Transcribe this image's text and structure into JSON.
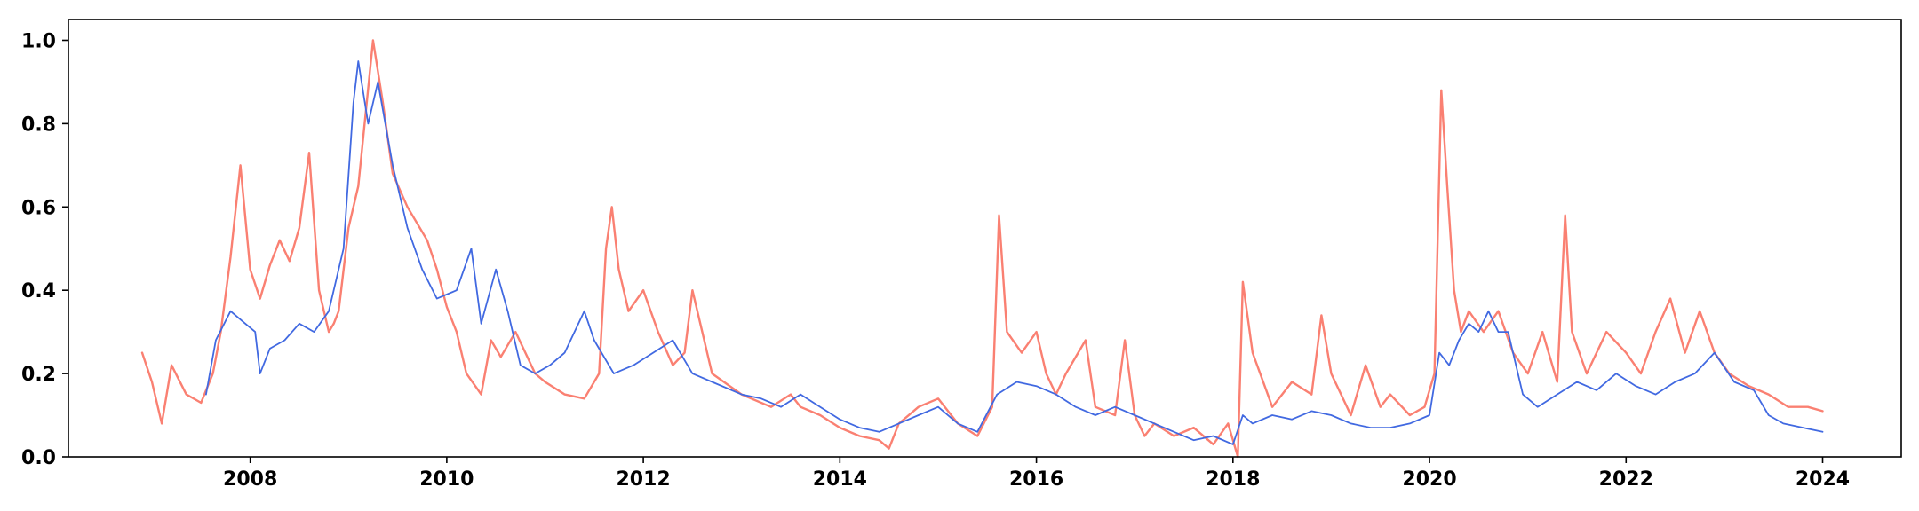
{
  "chart_data": {
    "type": "line",
    "title": "",
    "xlabel": "",
    "ylabel": "",
    "xlim": [
      2006.15,
      2024.8
    ],
    "ylim": [
      0.0,
      1.05
    ],
    "x_ticks": [
      2008,
      2010,
      2012,
      2014,
      2016,
      2018,
      2020,
      2022,
      2024
    ],
    "x_tick_labels": [
      "2008",
      "2010",
      "2012",
      "2014",
      "2016",
      "2018",
      "2020",
      "2022",
      "2024"
    ],
    "y_ticks": [
      0.0,
      0.2,
      0.4,
      0.6,
      0.8,
      1.0
    ],
    "y_tick_labels": [
      "0.0",
      "0.2",
      "0.4",
      "0.6",
      "0.8",
      "1.0"
    ],
    "grid": false,
    "legend": "none",
    "series": [
      {
        "color": "#FA8072",
        "x": [
          2006.9,
          2007.0,
          2007.1,
          2007.2,
          2007.35,
          2007.5,
          2007.62,
          2007.7,
          2007.8,
          2007.9,
          2008.0,
          2008.1,
          2008.2,
          2008.3,
          2008.4,
          2008.5,
          2008.6,
          2008.7,
          2008.8,
          2008.85,
          2008.9,
          2009.0,
          2009.1,
          2009.25,
          2009.35,
          2009.45,
          2009.6,
          2009.8,
          2009.9,
          2010.0,
          2010.1,
          2010.2,
          2010.35,
          2010.45,
          2010.55,
          2010.7,
          2010.9,
          2011.0,
          2011.2,
          2011.4,
          2011.55,
          2011.62,
          2011.68,
          2011.75,
          2011.85,
          2012.0,
          2012.15,
          2012.3,
          2012.42,
          2012.5,
          2012.7,
          2013.0,
          2013.3,
          2013.5,
          2013.6,
          2013.8,
          2014.0,
          2014.2,
          2014.4,
          2014.5,
          2014.6,
          2014.8,
          2015.0,
          2015.2,
          2015.4,
          2015.55,
          2015.62,
          2015.7,
          2015.85,
          2016.0,
          2016.1,
          2016.2,
          2016.3,
          2016.5,
          2016.6,
          2016.8,
          2016.9,
          2017.0,
          2017.1,
          2017.2,
          2017.4,
          2017.6,
          2017.8,
          2017.95,
          2018.05,
          2018.1,
          2018.2,
          2018.4,
          2018.6,
          2018.8,
          2018.9,
          2019.0,
          2019.1,
          2019.2,
          2019.35,
          2019.5,
          2019.6,
          2019.8,
          2019.95,
          2020.05,
          2020.12,
          2020.18,
          2020.25,
          2020.32,
          2020.4,
          2020.55,
          2020.7,
          2020.85,
          2021.0,
          2021.15,
          2021.3,
          2021.38,
          2021.45,
          2021.6,
          2021.8,
          2022.0,
          2022.15,
          2022.3,
          2022.45,
          2022.6,
          2022.75,
          2022.9,
          2023.05,
          2023.25,
          2023.45,
          2023.65,
          2023.85,
          2024.0
        ],
        "values": [
          0.25,
          0.18,
          0.08,
          0.22,
          0.15,
          0.13,
          0.2,
          0.3,
          0.48,
          0.7,
          0.45,
          0.38,
          0.46,
          0.52,
          0.47,
          0.55,
          0.73,
          0.4,
          0.3,
          0.32,
          0.35,
          0.55,
          0.65,
          1.0,
          0.85,
          0.68,
          0.6,
          0.52,
          0.45,
          0.36,
          0.3,
          0.2,
          0.15,
          0.28,
          0.24,
          0.3,
          0.2,
          0.18,
          0.15,
          0.14,
          0.2,
          0.5,
          0.6,
          0.45,
          0.35,
          0.4,
          0.3,
          0.22,
          0.25,
          0.4,
          0.2,
          0.15,
          0.12,
          0.15,
          0.12,
          0.1,
          0.07,
          0.05,
          0.04,
          0.02,
          0.08,
          0.12,
          0.14,
          0.08,
          0.05,
          0.12,
          0.58,
          0.3,
          0.25,
          0.3,
          0.2,
          0.15,
          0.2,
          0.28,
          0.12,
          0.1,
          0.28,
          0.1,
          0.05,
          0.08,
          0.05,
          0.07,
          0.03,
          0.08,
          0.0,
          0.42,
          0.25,
          0.12,
          0.18,
          0.15,
          0.34,
          0.2,
          0.15,
          0.1,
          0.22,
          0.12,
          0.15,
          0.1,
          0.12,
          0.2,
          0.88,
          0.65,
          0.4,
          0.3,
          0.35,
          0.3,
          0.35,
          0.25,
          0.2,
          0.3,
          0.18,
          0.58,
          0.3,
          0.2,
          0.3,
          0.25,
          0.2,
          0.3,
          0.38,
          0.25,
          0.35,
          0.25,
          0.2,
          0.17,
          0.15,
          0.12,
          0.12,
          0.11
        ]
      },
      {
        "color": "#4169E1",
        "x": [
          2007.55,
          2007.65,
          2007.8,
          2007.95,
          2008.05,
          2008.1,
          2008.2,
          2008.35,
          2008.5,
          2008.65,
          2008.8,
          2008.95,
          2009.05,
          2009.1,
          2009.2,
          2009.3,
          2009.45,
          2009.6,
          2009.75,
          2009.9,
          2010.1,
          2010.25,
          2010.35,
          2010.5,
          2010.62,
          2010.75,
          2010.9,
          2011.05,
          2011.2,
          2011.4,
          2011.5,
          2011.7,
          2011.9,
          2012.1,
          2012.3,
          2012.5,
          2012.7,
          2013.0,
          2013.2,
          2013.4,
          2013.6,
          2013.8,
          2014.0,
          2014.2,
          2014.4,
          2014.6,
          2014.8,
          2015.0,
          2015.2,
          2015.4,
          2015.6,
          2015.8,
          2016.0,
          2016.2,
          2016.4,
          2016.6,
          2016.8,
          2017.0,
          2017.2,
          2017.4,
          2017.6,
          2017.8,
          2018.0,
          2018.1,
          2018.2,
          2018.4,
          2018.6,
          2018.8,
          2019.0,
          2019.2,
          2019.4,
          2019.6,
          2019.8,
          2020.0,
          2020.1,
          2020.2,
          2020.3,
          2020.4,
          2020.5,
          2020.6,
          2020.7,
          2020.8,
          2020.95,
          2021.1,
          2021.3,
          2021.5,
          2021.7,
          2021.9,
          2022.1,
          2022.3,
          2022.5,
          2022.7,
          2022.9,
          2023.1,
          2023.3,
          2023.45,
          2023.6,
          2023.8,
          2024.0
        ],
        "values": [
          0.15,
          0.28,
          0.35,
          0.32,
          0.3,
          0.2,
          0.26,
          0.28,
          0.32,
          0.3,
          0.35,
          0.5,
          0.85,
          0.95,
          0.8,
          0.9,
          0.7,
          0.55,
          0.45,
          0.38,
          0.4,
          0.5,
          0.32,
          0.45,
          0.35,
          0.22,
          0.2,
          0.22,
          0.25,
          0.35,
          0.28,
          0.2,
          0.22,
          0.25,
          0.28,
          0.2,
          0.18,
          0.15,
          0.14,
          0.12,
          0.15,
          0.12,
          0.09,
          0.07,
          0.06,
          0.08,
          0.1,
          0.12,
          0.08,
          0.06,
          0.15,
          0.18,
          0.17,
          0.15,
          0.12,
          0.1,
          0.12,
          0.1,
          0.08,
          0.06,
          0.04,
          0.05,
          0.03,
          0.1,
          0.08,
          0.1,
          0.09,
          0.11,
          0.1,
          0.08,
          0.07,
          0.07,
          0.08,
          0.1,
          0.25,
          0.22,
          0.28,
          0.32,
          0.3,
          0.35,
          0.3,
          0.3,
          0.15,
          0.12,
          0.15,
          0.18,
          0.16,
          0.2,
          0.17,
          0.15,
          0.18,
          0.2,
          0.25,
          0.18,
          0.16,
          0.1,
          0.08,
          0.07,
          0.06
        ]
      }
    ]
  }
}
